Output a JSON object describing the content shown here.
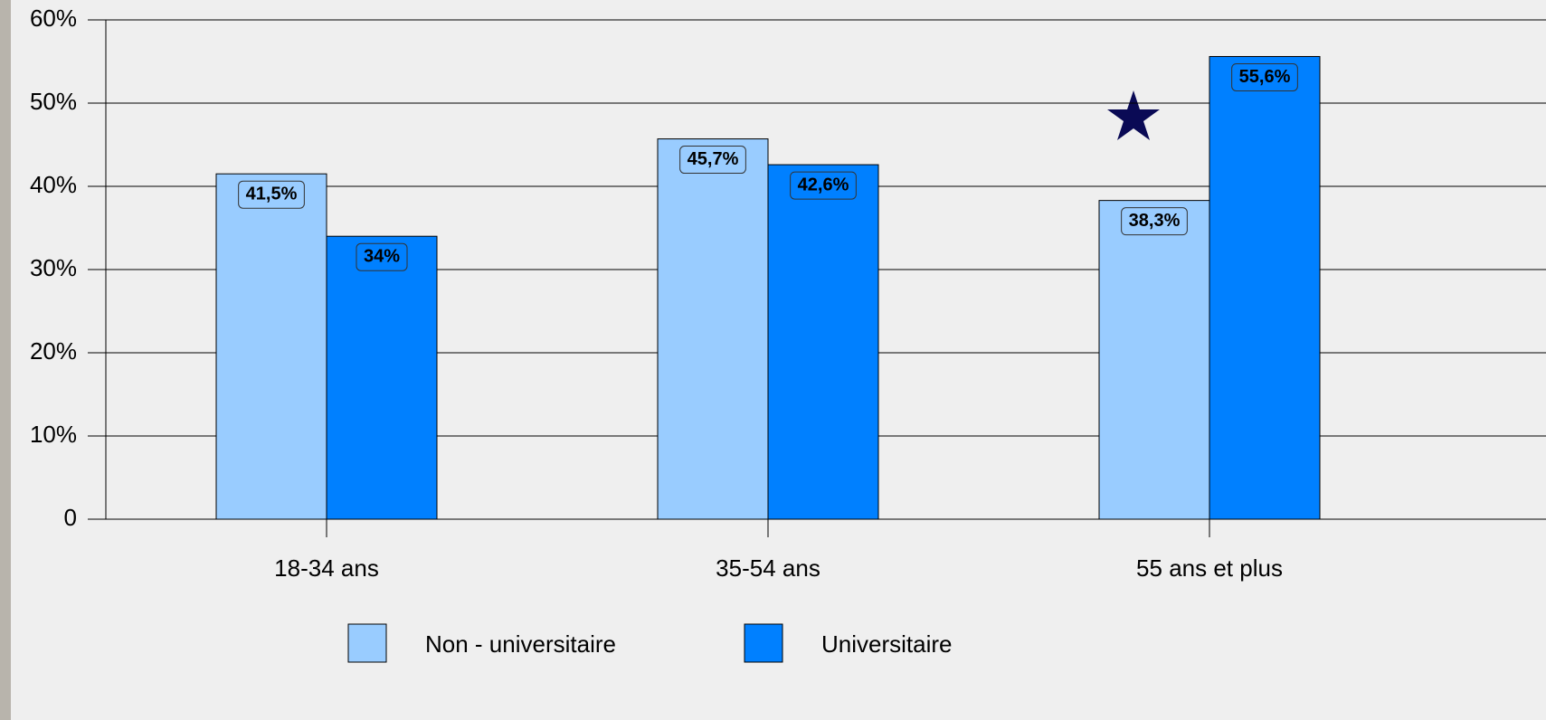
{
  "chart_data": {
    "type": "bar",
    "categories": [
      "18-34 ans",
      "35-54 ans",
      "55 ans et plus"
    ],
    "series": [
      {
        "name": "Non - universitaire",
        "color": "#99ccff",
        "values": [
          41.5,
          45.7,
          38.3
        ],
        "value_labels": [
          "41,5%",
          "45,7%",
          "38,3%"
        ]
      },
      {
        "name": "Universitaire",
        "color": "#0080ff",
        "values": [
          34,
          42.6,
          55.6
        ],
        "value_labels": [
          "34%",
          "42,6%",
          "55,6%"
        ]
      }
    ],
    "ylim": [
      0,
      60
    ],
    "yticks": [
      0,
      {
        "value": 10,
        "label": "10%"
      },
      {
        "value": 20,
        "label": "20%"
      },
      {
        "value": 30,
        "label": "30%"
      },
      {
        "value": 40,
        "label": "40%"
      },
      {
        "value": 50,
        "label": "50%"
      },
      {
        "value": 60,
        "label": "60%"
      }
    ],
    "grid": true
  }
}
